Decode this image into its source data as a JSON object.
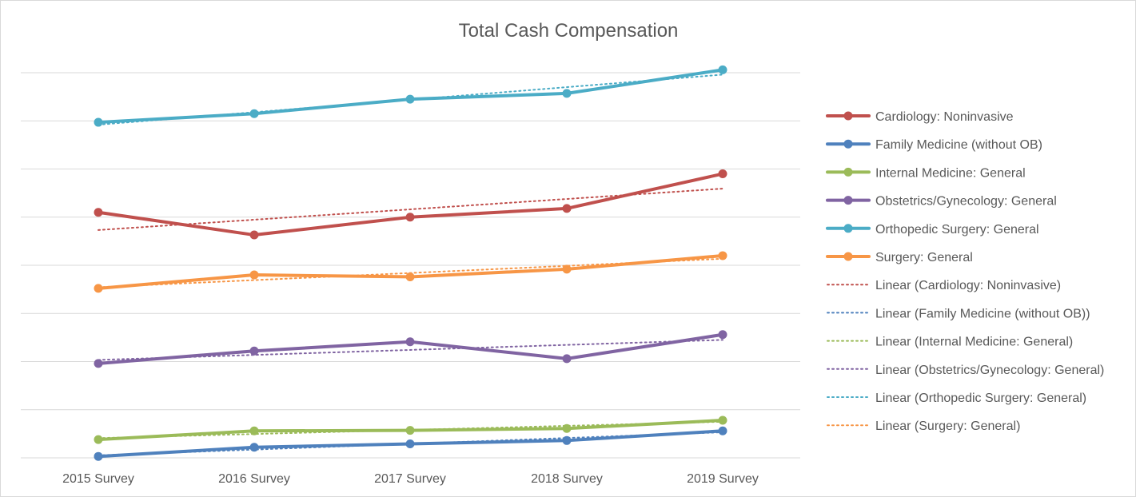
{
  "chart_data": {
    "type": "line",
    "title": "Total Cash Compensation",
    "xlabel": "",
    "ylabel": "",
    "categories": [
      "2015 Survey",
      "2016 Survey",
      "2017 Survey",
      "2018 Survey",
      "2019 Survey"
    ],
    "y_axis_labels_visible": false,
    "grid": true,
    "legend_position": "right",
    "series": [
      {
        "name": "Cardiology: Noninvasive",
        "color": "#c0504d",
        "values": [
          5.1,
          4.63,
          5.0,
          5.18,
          5.9
        ]
      },
      {
        "name": "Family Medicine (without OB)",
        "color": "#4f81bd",
        "values": [
          0.03,
          0.22,
          0.29,
          0.36,
          0.56
        ]
      },
      {
        "name": "Internal Medicine: General",
        "color": "#9bbb59",
        "values": [
          0.38,
          0.56,
          0.57,
          0.61,
          0.78
        ]
      },
      {
        "name": "Obstetrics/Gynecology: General",
        "color": "#8064a2",
        "values": [
          1.96,
          2.22,
          2.41,
          2.06,
          2.56
        ]
      },
      {
        "name": "Orthopedic Surgery: General",
        "color": "#4bacc6",
        "values": [
          6.97,
          7.15,
          7.45,
          7.57,
          8.06
        ]
      },
      {
        "name": "Surgery: General",
        "color": "#f79646",
        "values": [
          3.52,
          3.8,
          3.76,
          3.92,
          4.2
        ]
      }
    ],
    "trendlines": [
      {
        "name": "Linear (Cardiology: Noninvasive)",
        "color": "#c0504d",
        "type": "linear"
      },
      {
        "name": "Linear (Family Medicine (without OB))",
        "color": "#4f81bd",
        "type": "linear"
      },
      {
        "name": "Linear (Internal Medicine: General)",
        "color": "#9bbb59",
        "type": "linear"
      },
      {
        "name": "Linear (Obstetrics/Gynecology: General)",
        "color": "#8064a2",
        "type": "linear"
      },
      {
        "name": "Linear (Orthopedic Surgery: General)",
        "color": "#4bacc6",
        "type": "linear"
      },
      {
        "name": "Linear (Surgery: General)",
        "color": "#f79646",
        "type": "linear"
      }
    ],
    "ylim": [
      0,
      8
    ]
  }
}
